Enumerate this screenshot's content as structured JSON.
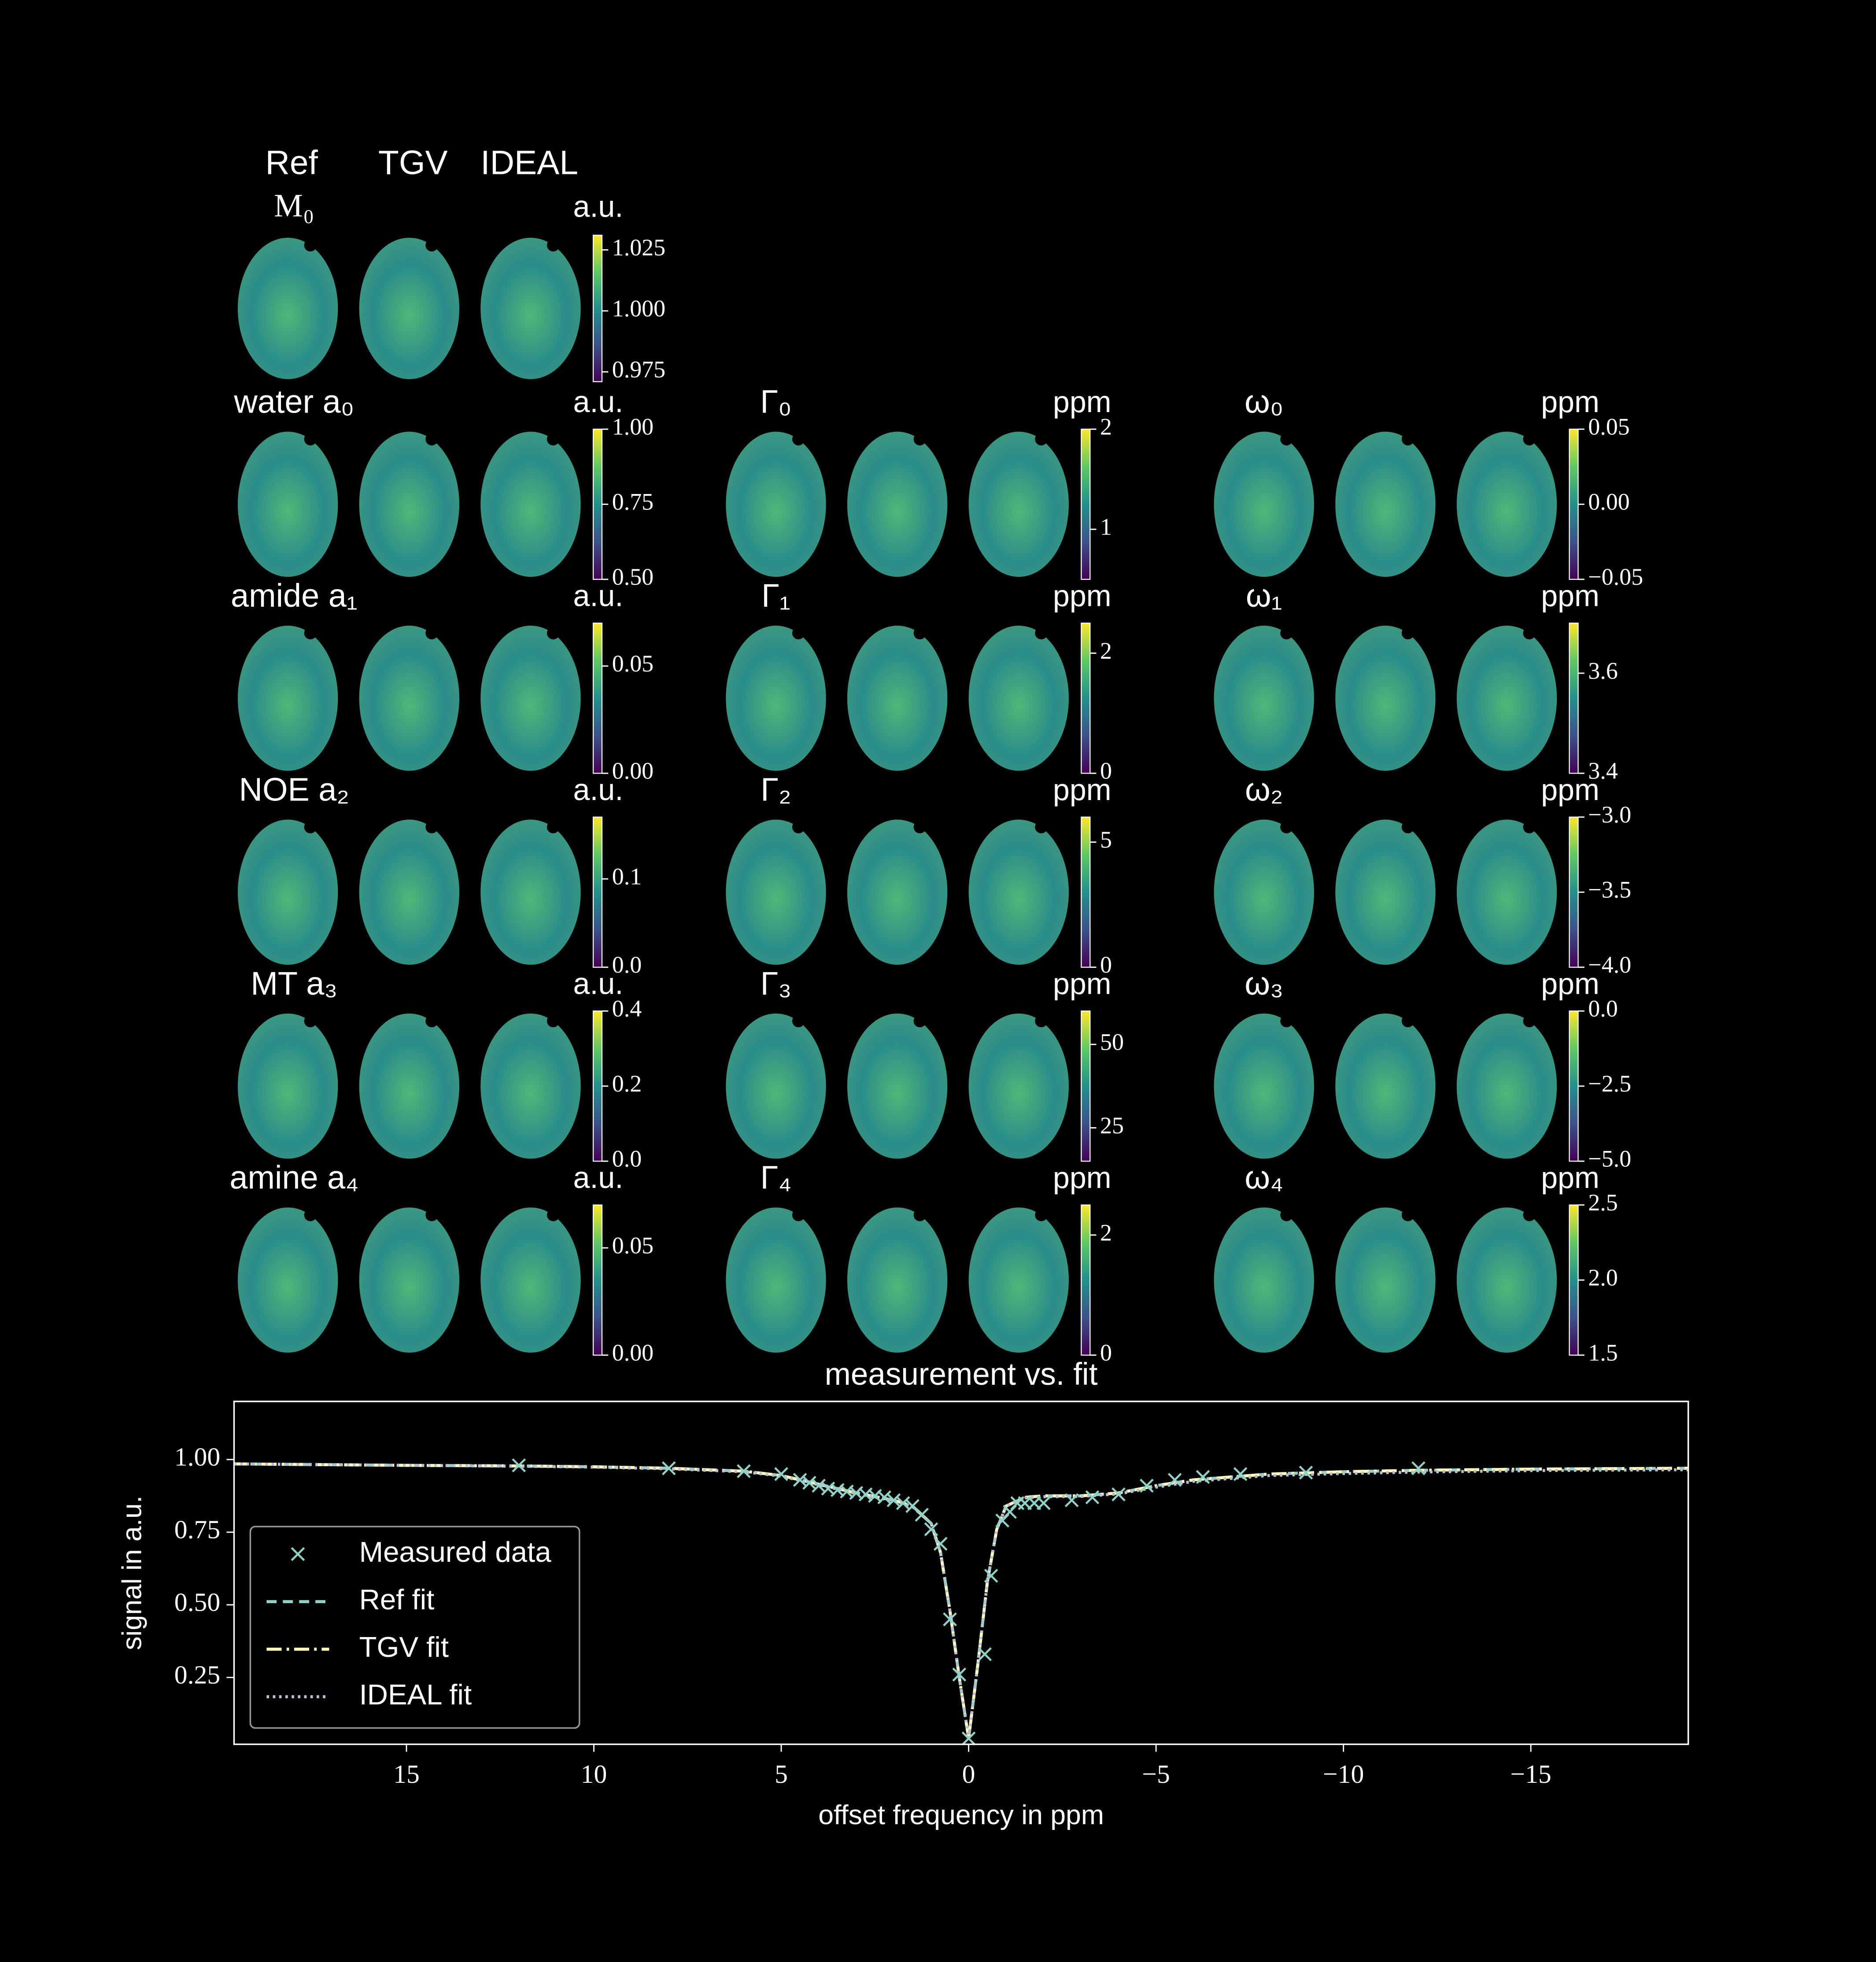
{
  "column_headers": [
    "Ref",
    "TGV",
    "IDEAL"
  ],
  "maps": [
    [
      {
        "title": "M₀",
        "unit": "a.u.",
        "ylim": [
          0.971,
          1.031
        ],
        "yticks": [
          0.975,
          {
            "value": 1.0,
            "label": "1.000"
          },
          1.025
        ]
      }
    ],
    [
      {
        "title": "water a₀",
        "unit": "a.u.",
        "ylim": [
          0.5,
          1.0
        ],
        "yticks": [
          {
            "value": 0.5,
            "label": "0.50"
          },
          0.75,
          {
            "value": 1.0,
            "label": "1.00"
          }
        ]
      },
      {
        "title": "Γ₀",
        "unit": "ppm",
        "ylim": [
          0.5,
          2
        ],
        "yticks": [
          1,
          2
        ]
      },
      {
        "title": "ω₀",
        "unit": "ppm",
        "ylim": [
          -0.05,
          0.05
        ],
        "yticks": [
          {
            "value": -0.05,
            "label": "−0.05"
          },
          {
            "value": 0,
            "label": "0.00"
          },
          0.05
        ]
      }
    ],
    [
      {
        "title": "amide a₁",
        "unit": "a.u.",
        "ylim": [
          0,
          0.07
        ],
        "yticks": [
          {
            "value": 0,
            "label": "0.00"
          },
          0.05
        ]
      },
      {
        "title": "Γ₁",
        "unit": "ppm",
        "ylim": [
          0,
          2.5
        ],
        "yticks": [
          0,
          2
        ]
      },
      {
        "title": "ω₁",
        "unit": "ppm",
        "ylim": [
          3.4,
          3.7
        ],
        "yticks": [
          3.4,
          3.6
        ]
      }
    ],
    [
      {
        "title": "NOE a₂",
        "unit": "a.u.",
        "ylim": [
          0,
          0.17
        ],
        "yticks": [
          {
            "value": 0,
            "label": "0.0"
          },
          0.1
        ]
      },
      {
        "title": "Γ₂",
        "unit": "ppm",
        "ylim": [
          0,
          6
        ],
        "yticks": [
          0,
          5
        ]
      },
      {
        "title": "ω₂",
        "unit": "ppm",
        "ylim": [
          -4,
          -3
        ],
        "yticks": [
          {
            "value": -4,
            "label": "−4.0"
          },
          {
            "value": -3.5,
            "label": "−3.5"
          },
          {
            "value": -3,
            "label": "−3.0"
          }
        ]
      }
    ],
    [
      {
        "title": "MT a₃",
        "unit": "a.u.",
        "ylim": [
          0,
          0.4
        ],
        "yticks": [
          {
            "value": 0,
            "label": "0.0"
          },
          0.2,
          0.4
        ]
      },
      {
        "title": "Γ₃",
        "unit": "ppm",
        "ylim": [
          15,
          60
        ],
        "yticks": [
          25,
          50
        ]
      },
      {
        "title": "ω₃",
        "unit": "ppm",
        "ylim": [
          -5,
          0
        ],
        "yticks": [
          {
            "value": -5,
            "label": "−5.0"
          },
          {
            "value": -2.5,
            "label": "−2.5"
          },
          {
            "value": 0,
            "label": "0.0"
          }
        ]
      }
    ],
    [
      {
        "title": "amine a₄",
        "unit": "a.u.",
        "ylim": [
          0,
          0.07
        ],
        "yticks": [
          {
            "value": 0,
            "label": "0.00"
          },
          0.05
        ]
      },
      {
        "title": "Γ₄",
        "unit": "ppm",
        "ylim": [
          0,
          2.5
        ],
        "yticks": [
          0,
          2
        ]
      },
      {
        "title": "ω₄",
        "unit": "ppm",
        "ylim": [
          1.5,
          2.5
        ],
        "yticks": [
          1.5,
          {
            "value": 2,
            "label": "2.0"
          },
          2.5
        ]
      }
    ]
  ],
  "chart_data": {
    "type": "line",
    "title": "measurement vs. fit",
    "xlabel": "offset frequency in ppm",
    "ylabel": "signal in a.u.",
    "xlim": [
      19.6,
      -19.2
    ],
    "ylim": [
      0.02,
      1.2
    ],
    "xticks": [
      15,
      10,
      5,
      0,
      {
        "value": -5,
        "label": "−5"
      },
      {
        "value": -10,
        "label": "−10"
      },
      {
        "value": -15,
        "label": "−15"
      }
    ],
    "yticks": [
      0.25,
      {
        "value": 0.5,
        "label": "0.50"
      },
      0.75,
      {
        "value": 1.0,
        "label": "1.00"
      }
    ],
    "legend": "lower left",
    "series": [
      {
        "name": "Measured data",
        "color": "#8dd3c7",
        "marker": "x",
        "x": [
          12,
          8,
          6,
          5,
          4.5,
          4.25,
          4,
          3.75,
          3.5,
          3.25,
          3,
          2.75,
          2.5,
          2.25,
          2,
          1.75,
          1.5,
          1.25,
          1,
          0.75,
          0.5,
          0.25,
          0,
          -0.43,
          -0.6,
          -0.9,
          -1.1,
          -1.3,
          -1.5,
          -1.75,
          -2,
          -2.75,
          -3.3,
          -4,
          -4.75,
          -5.5,
          -6.25,
          -7.25,
          -9,
          -12
        ],
        "values": [
          0.98,
          0.97,
          0.96,
          0.95,
          0.93,
          0.92,
          0.91,
          0.9,
          0.895,
          0.89,
          0.885,
          0.88,
          0.875,
          0.87,
          0.86,
          0.85,
          0.84,
          0.81,
          0.76,
          0.71,
          0.45,
          0.26,
          0.04,
          0.33,
          0.6,
          0.79,
          0.82,
          0.85,
          0.85,
          0.85,
          0.85,
          0.86,
          0.87,
          0.88,
          0.91,
          0.93,
          0.94,
          0.95,
          0.955,
          0.97
        ]
      },
      {
        "name": "Ref fit",
        "color": "#8dd3c7",
        "dash": "dashed",
        "x": [
          19.6,
          15,
          12,
          10,
          8,
          6,
          5,
          4,
          3,
          2,
          1.5,
          1,
          0.75,
          0.5,
          0.25,
          0,
          -0.25,
          -0.5,
          -0.75,
          -1,
          -1.5,
          -2,
          -3,
          -4,
          -5,
          -6,
          -8,
          -10,
          -12,
          -15,
          -19.2
        ],
        "values": [
          0.985,
          0.98,
          0.978,
          0.975,
          0.97,
          0.96,
          0.945,
          0.915,
          0.885,
          0.86,
          0.84,
          0.78,
          0.68,
          0.48,
          0.25,
          0.04,
          0.3,
          0.58,
          0.76,
          0.84,
          0.87,
          0.875,
          0.875,
          0.885,
          0.91,
          0.93,
          0.95,
          0.958,
          0.963,
          0.967,
          0.97
        ]
      },
      {
        "name": "TGV fit",
        "color": "#feffb3",
        "dash": "dashdot",
        "x": [
          19.6,
          15,
          12,
          10,
          8,
          6,
          5,
          4,
          3,
          2,
          1.5,
          1,
          0.75,
          0.5,
          0.25,
          0,
          -0.25,
          -0.5,
          -0.75,
          -1,
          -1.5,
          -2,
          -3,
          -4,
          -5,
          -6,
          -8,
          -10,
          -12,
          -15,
          -19.2
        ],
        "values": [
          0.985,
          0.98,
          0.978,
          0.975,
          0.97,
          0.96,
          0.945,
          0.915,
          0.885,
          0.86,
          0.84,
          0.78,
          0.68,
          0.48,
          0.25,
          0.04,
          0.3,
          0.58,
          0.76,
          0.84,
          0.87,
          0.875,
          0.875,
          0.885,
          0.91,
          0.93,
          0.95,
          0.958,
          0.963,
          0.967,
          0.97
        ]
      },
      {
        "name": "IDEAL fit",
        "color": "#bfbbd9",
        "dash": "dotted",
        "x": [
          19.6,
          15,
          12,
          10,
          8,
          6,
          5,
          4,
          3,
          2,
          1.5,
          1,
          0.75,
          0.5,
          0.25,
          0,
          -0.25,
          -0.5,
          -0.75,
          -1,
          -1.5,
          -2,
          -3,
          -4,
          -5,
          -6,
          -8,
          -10,
          -12,
          -15,
          -19.2
        ],
        "values": [
          0.985,
          0.98,
          0.977,
          0.974,
          0.968,
          0.958,
          0.943,
          0.913,
          0.883,
          0.858,
          0.838,
          0.78,
          0.68,
          0.48,
          0.25,
          0.04,
          0.3,
          0.58,
          0.76,
          0.84,
          0.868,
          0.872,
          0.873,
          0.882,
          0.905,
          0.925,
          0.945,
          0.952,
          0.957,
          0.962,
          0.965
        ]
      }
    ]
  }
}
